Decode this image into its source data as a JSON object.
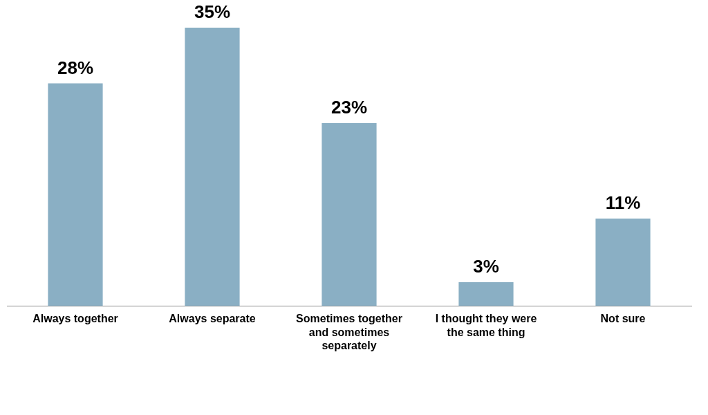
{
  "chart_data": {
    "type": "bar",
    "categories": [
      "Always together",
      "Always separate",
      "Sometimes together and sometimes separately",
      "I thought they were the same thing",
      "Not sure"
    ],
    "values": [
      28,
      35,
      23,
      3,
      11
    ],
    "value_labels": [
      "28%",
      "35%",
      "23%",
      "3%",
      "11%"
    ],
    "color": "#8aafc4",
    "grid": false,
    "legend": false
  }
}
